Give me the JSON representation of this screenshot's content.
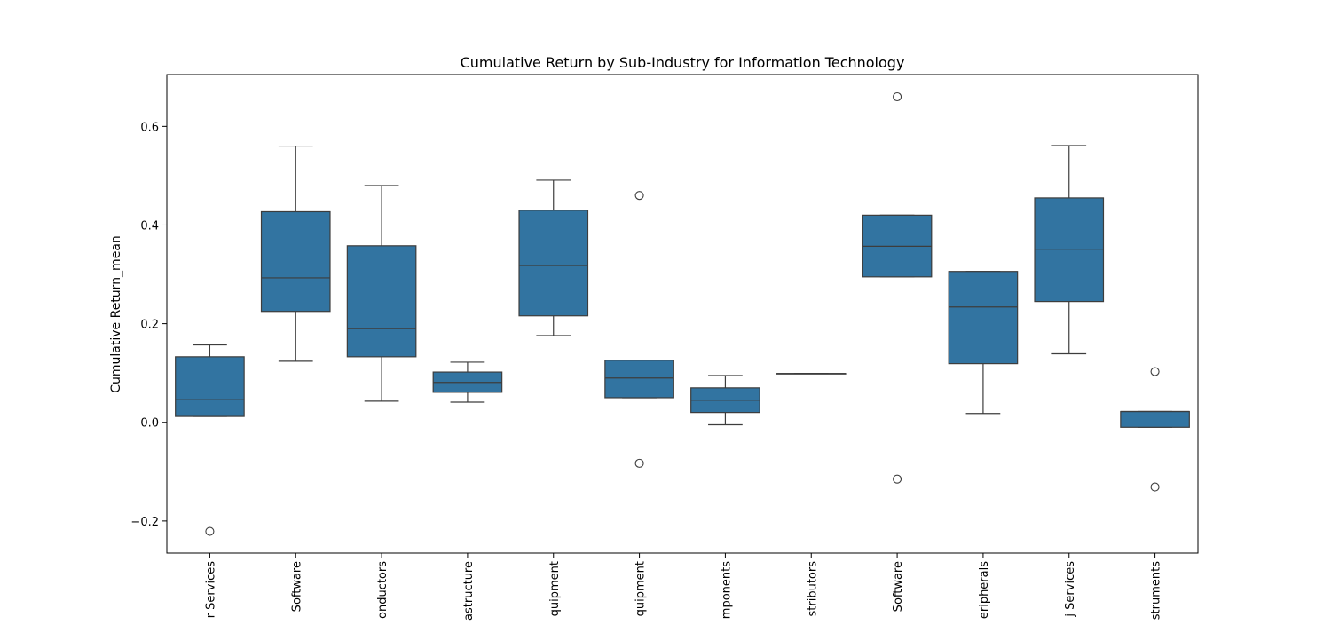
{
  "chart_data": {
    "type": "box",
    "title": "Cumulative Return by Sub-Industry for Information Technology",
    "xlabel": "",
    "ylabel": "Cumulative Return_mean",
    "ylim": [
      -0.265,
      0.705
    ],
    "yticks": [
      -0.2,
      0.0,
      0.2,
      0.4,
      0.6
    ],
    "ytick_labels": [
      "−0.2",
      "0.0",
      "0.2",
      "0.4",
      "0.6"
    ],
    "grid": false,
    "box_color": "#3274a1",
    "line_color": "#3d3d3d",
    "categories": [
      {
        "label": "r Services",
        "stats": {
          "whisker_low": 0.012,
          "q1": 0.012,
          "median": 0.046,
          "q3": 0.133,
          "whisker_high": 0.157
        },
        "outliers": [
          -0.221
        ]
      },
      {
        "label": "Software",
        "stats": {
          "whisker_low": 0.124,
          "q1": 0.225,
          "median": 0.293,
          "q3": 0.427,
          "whisker_high": 0.56
        },
        "outliers": []
      },
      {
        "label": "onductors",
        "stats": {
          "whisker_low": 0.043,
          "q1": 0.133,
          "median": 0.19,
          "q3": 0.358,
          "whisker_high": 0.48
        },
        "outliers": []
      },
      {
        "label": "astructure",
        "stats": {
          "whisker_low": 0.041,
          "q1": 0.061,
          "median": 0.081,
          "q3": 0.102,
          "whisker_high": 0.122
        },
        "outliers": []
      },
      {
        "label": "quipment",
        "stats": {
          "whisker_low": 0.176,
          "q1": 0.216,
          "median": 0.318,
          "q3": 0.43,
          "whisker_high": 0.491
        },
        "outliers": []
      },
      {
        "label": "quipment",
        "stats": {
          "whisker_low": 0.05,
          "q1": 0.05,
          "median": 0.09,
          "q3": 0.126,
          "whisker_high": 0.126
        },
        "outliers": [
          0.46,
          -0.083
        ]
      },
      {
        "label": "mponents",
        "stats": {
          "whisker_low": -0.005,
          "q1": 0.02,
          "median": 0.045,
          "q3": 0.07,
          "whisker_high": 0.095
        },
        "outliers": []
      },
      {
        "label": "stributors",
        "stats": {
          "whisker_low": 0.099,
          "q1": 0.099,
          "median": 0.099,
          "q3": 0.099,
          "whisker_high": 0.099
        },
        "outliers": []
      },
      {
        "label": "Software",
        "stats": {
          "whisker_low": 0.295,
          "q1": 0.295,
          "median": 0.357,
          "q3": 0.42,
          "whisker_high": 0.42
        },
        "outliers": [
          0.66,
          -0.115
        ]
      },
      {
        "label": "eripherals",
        "stats": {
          "whisker_low": 0.018,
          "q1": 0.119,
          "median": 0.234,
          "q3": 0.306,
          "whisker_high": 0.306
        },
        "outliers": []
      },
      {
        "label": "j Services",
        "stats": {
          "whisker_low": 0.139,
          "q1": 0.245,
          "median": 0.351,
          "q3": 0.455,
          "whisker_high": 0.561
        },
        "outliers": []
      },
      {
        "label": "struments",
        "stats": {
          "whisker_low": -0.01,
          "q1": -0.01,
          "median": 0.022,
          "q3": 0.022,
          "whisker_high": 0.022
        },
        "outliers": [
          0.103,
          -0.131
        ]
      }
    ]
  }
}
